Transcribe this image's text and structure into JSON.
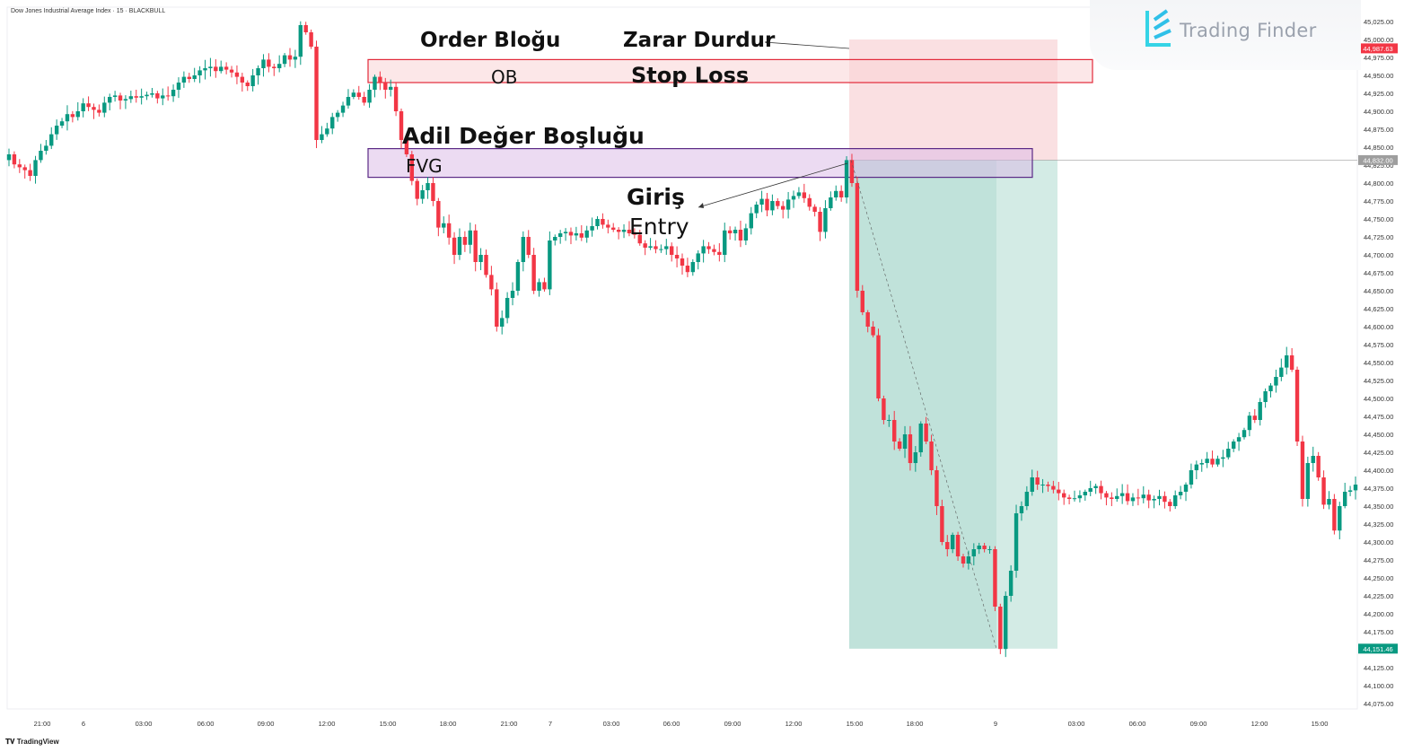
{
  "header": {
    "symbol": "Dow Jones Industrial Average Index · 15 · BLACKBULL"
  },
  "watermark": {
    "brand": "Trading Finder"
  },
  "footer": {
    "brand": "TradingView"
  },
  "annotations": {
    "order_block_title": "Order Bloğu",
    "ob_box_label": "OB",
    "stop_loss_tr": "Zarar Durdur",
    "stop_loss_en": "Stop Loss",
    "fvg_title": "Adil Değer Boşluğu",
    "fvg_box_label": "FVG",
    "entry_tr": "Giriş",
    "entry_en": "Entry"
  },
  "chart_data": {
    "type": "candlestick",
    "ylim": [
      44050,
      45035
    ],
    "y_ticks": [
      "45,025.00",
      "45,000.00",
      "44,975.00",
      "44,950.00",
      "44,925.00",
      "44,900.00",
      "44,875.00",
      "44,850.00",
      "44,825.00",
      "44,800.00",
      "44,775.00",
      "44,750.00",
      "44,725.00",
      "44,700.00",
      "44,675.00",
      "44,650.00",
      "44,625.00",
      "44,600.00",
      "44,575.00",
      "44,550.00",
      "44,525.00",
      "44,500.00",
      "44,475.00",
      "44,450.00",
      "44,425.00",
      "44,400.00",
      "44,375.00",
      "44,350.00",
      "44,325.00",
      "44,300.00",
      "44,275.00",
      "44,250.00",
      "44,225.00",
      "44,200.00",
      "44,175.00",
      "44,150.00",
      "44,125.00",
      "44,100.00",
      "44,075.00"
    ],
    "x_ticks": [
      "21:00",
      "6",
      "03:00",
      "06:00",
      "09:00",
      "12:00",
      "15:00",
      "18:00",
      "21:00",
      "7",
      "03:00",
      "06:00",
      "09:00",
      "12:00",
      "15:00",
      "18:00",
      "9",
      "03:00",
      "06:00",
      "09:00",
      "12:00",
      "15:00"
    ],
    "price_labels": [
      {
        "value": 44987.63,
        "text": "44,987.63",
        "color": "#f23645"
      },
      {
        "value": 44832.0,
        "text": "44,832.00",
        "color": "#9e9e9e"
      },
      {
        "value": 44151.46,
        "text": "44,151.46",
        "color": "#089981"
      }
    ],
    "zones": {
      "order_block": [
        44940,
        44972
      ],
      "fvg": [
        44808,
        44848
      ],
      "position_stop": [
        44832,
        45000
      ],
      "position_target": [
        44151.46,
        44832
      ]
    },
    "series": [
      {
        "t": 0,
        "v": [
          44840,
          44826,
          44822,
          44818,
          44810,
          44832,
          44845,
          44852,
          44868,
          44880,
          44886,
          44896,
          44892,
          44900,
          44911,
          44906,
          44902,
          44898,
          44912,
          44920,
          44922,
          44915,
          44917,
          44921,
          44919,
          44921,
          44923,
          44925,
          44918,
          44922,
          44921,
          44930,
          44940,
          44948,
          44945,
          44950,
          44957,
          44960,
          44962,
          44956,
          44962,
          44958,
          44954,
          44948,
          44940,
          44935,
          44950,
          44960,
          44972,
          44962,
          44960,
          44966,
          44978,
          44972,
          44976,
          45020,
          45010,
          44990,
          44860,
          44868,
          44876,
          44892,
          44898,
          44908,
          44920,
          44926,
          44920,
          44912,
          44930,
          44948,
          44940,
          44930,
          44934,
          44900,
          44860,
          44840,
          44803,
          44778,
          44790,
          44800,
          44775,
          44738,
          44744,
          44724,
          44700,
          44725,
          44714,
          44734,
          44690,
          44700,
          44672,
          44652,
          44600,
          44612,
          44640,
          44650,
          44690,
          44725,
          44700,
          44650,
          44662,
          44652,
          44720,
          44725,
          44730,
          44732,
          44727,
          44730,
          44724,
          44734,
          44740,
          44750,
          44742,
          44738,
          44735,
          44732,
          44735,
          44730,
          44728,
          44716,
          44710,
          44712,
          44708,
          44708,
          44712,
          44700,
          44695,
          44685,
          44676,
          44690,
          44702,
          44712,
          44708,
          44704,
          44700,
          44734,
          44730,
          44735,
          44720,
          44737,
          44758,
          44770,
          44778,
          44762,
          44775,
          44768,
          44763,
          44777,
          44782,
          44787,
          44779,
          44767,
          44760,
          44732,
          44765,
          44780,
          44789,
          44780,
          44832,
          44800,
          44650,
          44620,
          44600,
          44588,
          44500,
          44470,
          44470,
          44440,
          44430,
          44450,
          44410,
          44425,
          44465,
          44440,
          44400,
          44350,
          44300,
          44290,
          44310,
          44280,
          44270,
          44280,
          44290,
          44295,
          44290,
          44290,
          44210,
          44151,
          44225,
          44260,
          44340,
          44350,
          44370,
          44390,
          44380,
          44380,
          44378,
          44373,
          44368,
          44362,
          44360,
          44361,
          44365,
          44370,
          44375,
          44378,
          44368,
          44362,
          44360,
          44364,
          44368,
          44357,
          44362,
          44361,
          44366,
          44358,
          44360,
          44364,
          44356,
          44350,
          44365,
          44370,
          44380,
          44400,
          44408,
          44410,
          44416,
          44408,
          44416,
          44418,
          44430,
          44440,
          44446,
          44456,
          44476,
          44470,
          44495,
          44510,
          44518,
          44530,
          44543,
          44560,
          44540,
          44440,
          44360,
          44410,
          44420,
          44390,
          44352,
          44360,
          44316,
          44350,
          44370,
          44372,
          44380
        ]
      }
    ]
  }
}
